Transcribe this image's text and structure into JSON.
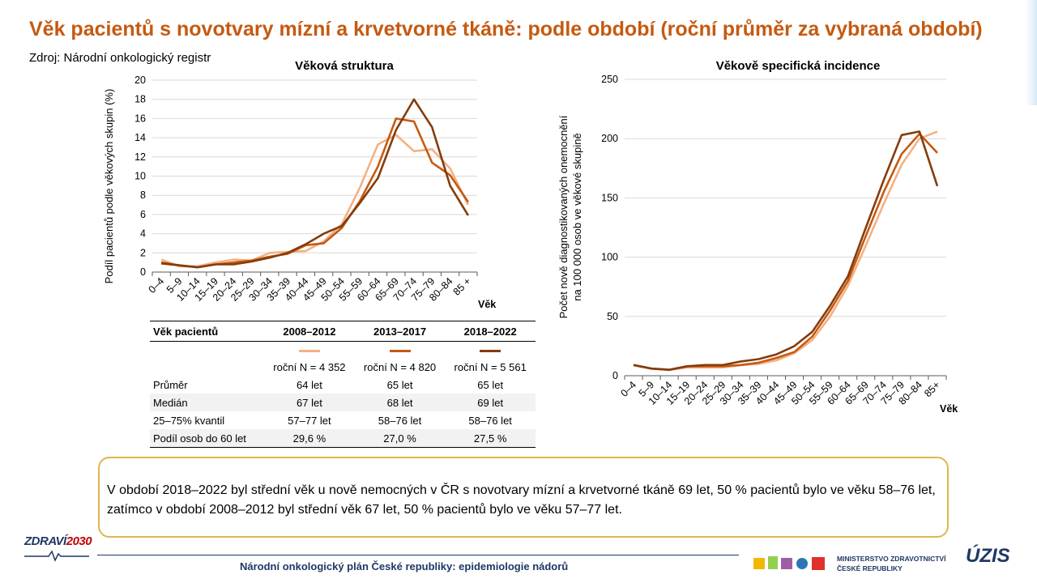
{
  "title": "Věk pacientů s novotvary mízní a krvetvorné tkáně: podle období (roční průměr za vybraná období)",
  "source": "Zdroj: Národní onkologický registr",
  "colors": {
    "title": "#c55a11",
    "series": [
      "#f4b183",
      "#c55a11",
      "#843c0c"
    ],
    "note_border": "#e0b64e",
    "footer": "#1f3864"
  },
  "chart_data": [
    {
      "type": "line",
      "title": "Věková struktura",
      "ylabel": "Podíl pacientů podle věkových skupin (%)",
      "xlabel": "Věk",
      "ylim": [
        0,
        20
      ],
      "yticks": [
        "0",
        "2",
        "4",
        "6",
        "8",
        "10",
        "12",
        "14",
        "16",
        "18",
        "20"
      ],
      "categories": [
        "0–4",
        "5–9",
        "10–14",
        "15–19",
        "20–24",
        "25–29",
        "30–34",
        "35–39",
        "40–44",
        "45–49",
        "50–54",
        "55–59",
        "60–64",
        "65–69",
        "70–74",
        "75–79",
        "80–84",
        "85 +"
      ],
      "grid": true,
      "series": [
        {
          "name": "2008–2012",
          "values": [
            1.3,
            0.6,
            0.6,
            1.0,
            1.3,
            1.2,
            2.0,
            2.1,
            2.2,
            3.2,
            5.0,
            8.8,
            13.3,
            14.3,
            12.6,
            12.8,
            10.8,
            7.0
          ]
        },
        {
          "name": "2013–2017",
          "values": [
            1.0,
            0.7,
            0.5,
            0.8,
            1.0,
            1.2,
            1.6,
            1.9,
            2.8,
            3.0,
            4.6,
            7.4,
            11.0,
            16.0,
            15.7,
            11.4,
            10.1,
            7.3
          ]
        },
        {
          "name": "2018–2022",
          "values": [
            0.9,
            0.7,
            0.5,
            0.8,
            0.8,
            1.1,
            1.5,
            2.0,
            2.9,
            4.0,
            4.8,
            7.2,
            9.8,
            14.8,
            18.0,
            15.1,
            9.0,
            5.9
          ]
        }
      ]
    },
    {
      "type": "line",
      "title": "Věkově specifická incidence",
      "ylabel": "Počet nově diagnostikovaných onemocnění na 100 000 osob ve věkové skupině",
      "ylabel_lines": [
        "Počet nově diagnostikovaných onemocnění",
        "na 100 000 osob ve věkové skupině"
      ],
      "xlabel": "Věk",
      "ylim": [
        0,
        250
      ],
      "yticks": [
        "0",
        "50",
        "100",
        "150",
        "200",
        "250"
      ],
      "categories": [
        "0–4",
        "5–9",
        "10–14",
        "15–19",
        "20–24",
        "25–29",
        "30–34",
        "35–39",
        "40–44",
        "45–49",
        "50–54",
        "55–59",
        "60–64",
        "65–69",
        "70–74",
        "75–79",
        "80–84",
        "85+"
      ],
      "grid": true,
      "series": [
        {
          "name": "2008–2012",
          "values": [
            9,
            6,
            5,
            7,
            7,
            7,
            9,
            10,
            13,
            19,
            30,
            50,
            76,
            110,
            145,
            178,
            200,
            206
          ]
        },
        {
          "name": "2013–2017",
          "values": [
            9,
            6,
            5,
            8,
            8,
            8,
            9,
            11,
            15,
            20,
            33,
            55,
            80,
            118,
            155,
            187,
            204,
            188
          ]
        },
        {
          "name": "2018–2022",
          "values": [
            9,
            6,
            5,
            8,
            9,
            9,
            12,
            14,
            18,
            25,
            37,
            59,
            84,
            125,
            165,
            203,
            206,
            160
          ]
        }
      ]
    }
  ],
  "table": {
    "headers": [
      "Věk pacientů",
      "2008–2012",
      "2013–2017",
      "2018–2022"
    ],
    "n_row": [
      "",
      "roční N = 4 352",
      "roční N = 4 820",
      "roční N = 5 561"
    ],
    "rows": [
      [
        "Průměr",
        "64 let",
        "65 let",
        "65 let"
      ],
      [
        "Medián",
        "67 let",
        "68 let",
        "69 let"
      ],
      [
        "25–75% kvantil",
        "57–77 let",
        "58–76 let",
        "58–76 let"
      ],
      [
        "Podíl osob do 60 let",
        "29,6 %",
        "27,0 %",
        "27,5 %"
      ]
    ]
  },
  "note": "V období 2018–2022 byl střední věk u nově nemocných v ČR s novotvary mízní a krvetvorné tkáně 69 let, 50 % pacientů bylo ve věku 58–76 let, zatímco v období 2008–2012 byl střední věk 67 let, 50 % pacientů bylo ve věku 57–77 let.",
  "footer": {
    "text": "Národní onkologický plán České republiky: epidemiologie nádorů",
    "logo_zdravi": "ZDRAVÍ",
    "logo_zdravi_year": "2030",
    "logo_ministry_line1": "MINISTERSTVO ZDRAVOTNICTVÍ",
    "logo_ministry_line2": "ČESKÉ REPUBLIKY",
    "logo_uzis": "ÚZIS"
  }
}
